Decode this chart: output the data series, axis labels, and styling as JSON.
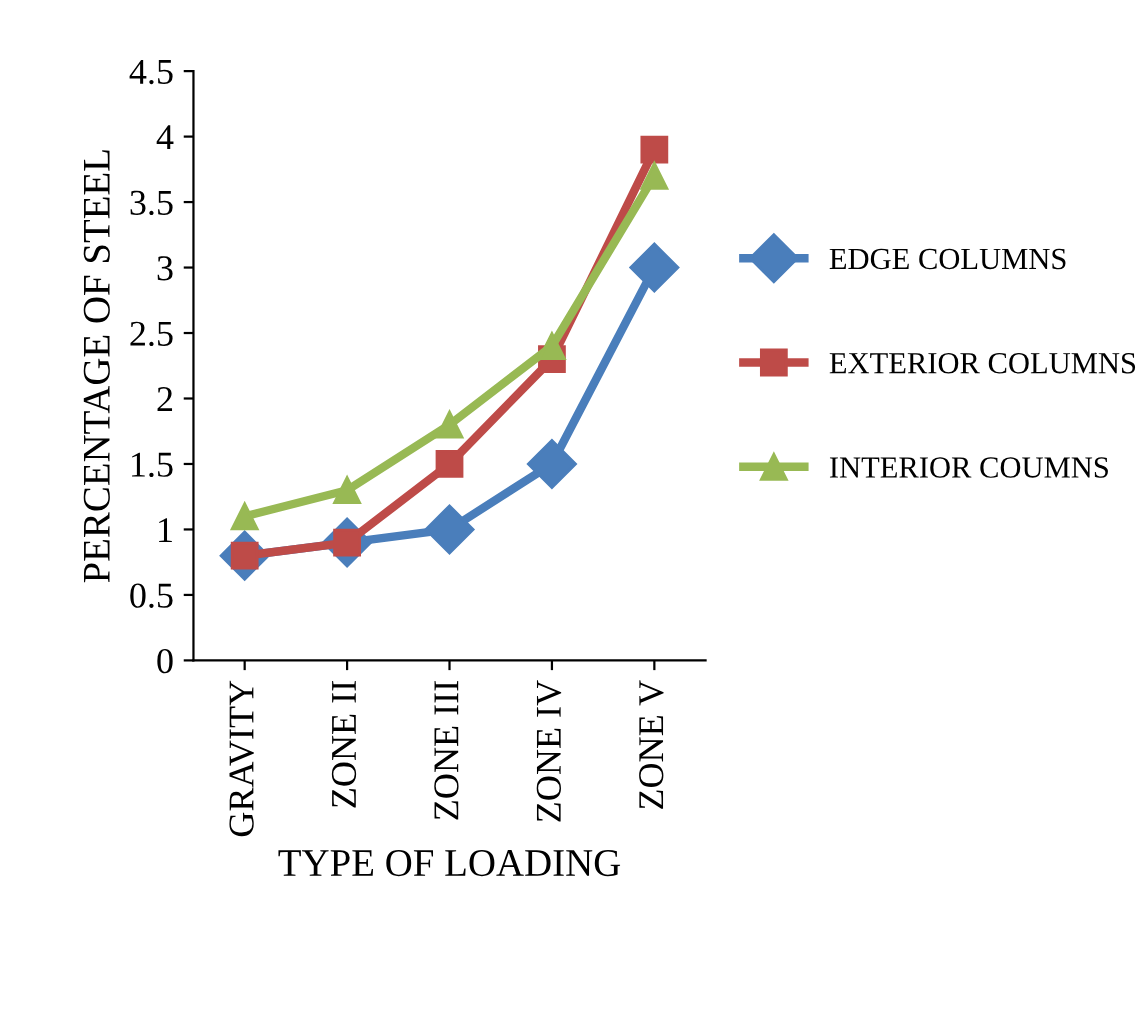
{
  "chart_data": {
    "type": "line",
    "xlabel": "TYPE OF LOADING",
    "ylabel": "PERCENTAGE OF STEEL",
    "categories": [
      "GRAVITY",
      "ZONE II",
      "ZONE III",
      "ZONE IV",
      "ZONE V"
    ],
    "series": [
      {
        "name": "EDGE COLUMNS",
        "color": "#4a7ebb",
        "marker": "diamond",
        "values": [
          0.8,
          0.9,
          1.0,
          1.5,
          3.0
        ]
      },
      {
        "name": "EXTERIOR COLUMNS",
        "color": "#be4b48",
        "marker": "square",
        "values": [
          0.8,
          0.9,
          1.5,
          2.3,
          3.9
        ]
      },
      {
        "name": "INTERIOR COUMNS",
        "color": "#98b954",
        "marker": "triangle",
        "values": [
          1.1,
          1.3,
          1.8,
          2.4,
          3.7
        ]
      }
    ],
    "ylim": [
      0,
      4.5
    ],
    "yticks": [
      0,
      0.5,
      1,
      1.5,
      2,
      2.5,
      3,
      3.5,
      4,
      4.5
    ],
    "grid": false,
    "legend": "right",
    "line_style": "solid"
  }
}
